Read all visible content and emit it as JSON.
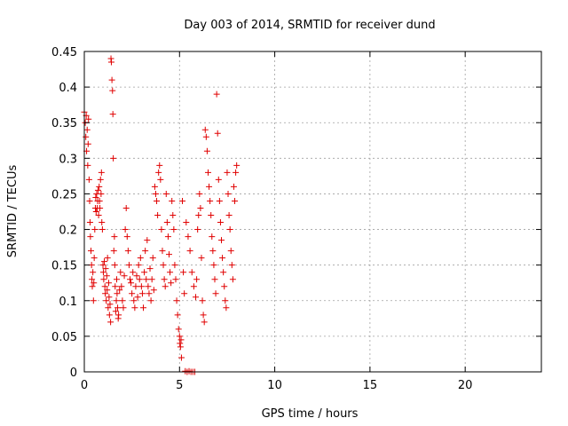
{
  "chart_data": {
    "type": "scatter",
    "title": "Day 003 of 2014, SRMTID for receiver dund",
    "xlabel": "GPS time / hours",
    "ylabel": "SRMTID / TECUs",
    "xlim": [
      0,
      24
    ],
    "ylim": [
      0,
      0.45
    ],
    "x_ticks": [
      0,
      5,
      10,
      15,
      20
    ],
    "y_ticks": [
      0,
      0.05,
      0.1,
      0.15,
      0.2,
      0.25,
      0.3,
      0.35,
      0.4,
      0.45
    ],
    "x_tick_labels": [
      "0",
      "5",
      "10",
      "15",
      "20"
    ],
    "y_tick_labels": [
      "0",
      "0.05",
      "0.1",
      "0.15",
      "0.2",
      "0.25",
      "0.3",
      "0.35",
      "0.4",
      "0.45"
    ],
    "grid": true,
    "marker": "plus",
    "color": "#e00000",
    "points": [
      [
        0.0,
        0.365
      ],
      [
        0.05,
        0.35
      ],
      [
        0.08,
        0.33
      ],
      [
        0.1,
        0.36
      ],
      [
        0.12,
        0.31
      ],
      [
        0.15,
        0.34
      ],
      [
        0.18,
        0.29
      ],
      [
        0.2,
        0.32
      ],
      [
        0.22,
        0.355
      ],
      [
        0.25,
        0.27
      ],
      [
        0.28,
        0.24
      ],
      [
        0.3,
        0.21
      ],
      [
        0.32,
        0.19
      ],
      [
        0.35,
        0.17
      ],
      [
        0.38,
        0.15
      ],
      [
        0.4,
        0.13
      ],
      [
        0.42,
        0.12
      ],
      [
        0.45,
        0.14
      ],
      [
        0.48,
        0.1
      ],
      [
        0.5,
        0.125
      ],
      [
        0.52,
        0.16
      ],
      [
        0.55,
        0.2
      ],
      [
        0.58,
        0.23
      ],
      [
        0.6,
        0.245
      ],
      [
        0.62,
        0.225
      ],
      [
        0.65,
        0.25
      ],
      [
        0.68,
        0.23
      ],
      [
        0.7,
        0.24
      ],
      [
        0.72,
        0.255
      ],
      [
        0.75,
        0.22
      ],
      [
        0.78,
        0.26
      ],
      [
        0.8,
        0.24
      ],
      [
        0.82,
        0.23
      ],
      [
        0.85,
        0.27
      ],
      [
        0.88,
        0.25
      ],
      [
        0.9,
        0.28
      ],
      [
        0.92,
        0.21
      ],
      [
        0.95,
        0.2
      ],
      [
        0.98,
        0.15
      ],
      [
        1.0,
        0.14
      ],
      [
        1.02,
        0.13
      ],
      [
        1.05,
        0.155
      ],
      [
        1.08,
        0.12
      ],
      [
        1.1,
        0.11
      ],
      [
        1.12,
        0.145
      ],
      [
        1.15,
        0.1
      ],
      [
        1.18,
        0.135
      ],
      [
        1.2,
        0.115
      ],
      [
        1.22,
        0.16
      ],
      [
        1.25,
        0.09
      ],
      [
        1.28,
        0.125
      ],
      [
        1.3,
        0.105
      ],
      [
        1.32,
        0.08
      ],
      [
        1.35,
        0.095
      ],
      [
        1.38,
        0.07
      ],
      [
        1.4,
        0.44
      ],
      [
        1.42,
        0.435
      ],
      [
        1.45,
        0.41
      ],
      [
        1.48,
        0.395
      ],
      [
        1.5,
        0.362
      ],
      [
        1.52,
        0.3
      ],
      [
        1.55,
        0.17
      ],
      [
        1.58,
        0.19
      ],
      [
        1.6,
        0.15
      ],
      [
        1.62,
        0.12
      ],
      [
        1.65,
        0.085
      ],
      [
        1.68,
        0.1
      ],
      [
        1.7,
        0.13
      ],
      [
        1.72,
        0.11
      ],
      [
        1.75,
        0.09
      ],
      [
        1.78,
        0.075
      ],
      [
        1.8,
        0.08
      ],
      [
        1.85,
        0.115
      ],
      [
        1.9,
        0.14
      ],
      [
        1.95,
        0.12
      ],
      [
        2.0,
        0.1
      ],
      [
        2.05,
        0.09
      ],
      [
        2.1,
        0.135
      ],
      [
        2.15,
        0.2
      ],
      [
        2.2,
        0.23
      ],
      [
        2.25,
        0.19
      ],
      [
        2.3,
        0.17
      ],
      [
        2.35,
        0.15
      ],
      [
        2.4,
        0.13
      ],
      [
        2.45,
        0.125
      ],
      [
        2.5,
        0.11
      ],
      [
        2.55,
        0.14
      ],
      [
        2.6,
        0.1
      ],
      [
        2.65,
        0.09
      ],
      [
        2.7,
        0.12
      ],
      [
        2.75,
        0.135
      ],
      [
        2.8,
        0.105
      ],
      [
        2.85,
        0.15
      ],
      [
        2.9,
        0.13
      ],
      [
        2.95,
        0.16
      ],
      [
        3.0,
        0.12
      ],
      [
        3.05,
        0.11
      ],
      [
        3.1,
        0.09
      ],
      [
        3.15,
        0.14
      ],
      [
        3.2,
        0.17
      ],
      [
        3.25,
        0.13
      ],
      [
        3.3,
        0.185
      ],
      [
        3.35,
        0.12
      ],
      [
        3.4,
        0.11
      ],
      [
        3.45,
        0.145
      ],
      [
        3.5,
        0.1
      ],
      [
        3.55,
        0.13
      ],
      [
        3.6,
        0.16
      ],
      [
        3.65,
        0.115
      ],
      [
        3.7,
        0.26
      ],
      [
        3.75,
        0.25
      ],
      [
        3.8,
        0.24
      ],
      [
        3.85,
        0.22
      ],
      [
        3.9,
        0.28
      ],
      [
        3.95,
        0.29
      ],
      [
        4.0,
        0.27
      ],
      [
        4.05,
        0.2
      ],
      [
        4.1,
        0.17
      ],
      [
        4.15,
        0.15
      ],
      [
        4.2,
        0.13
      ],
      [
        4.25,
        0.12
      ],
      [
        4.3,
        0.25
      ],
      [
        4.35,
        0.21
      ],
      [
        4.4,
        0.19
      ],
      [
        4.45,
        0.165
      ],
      [
        4.5,
        0.14
      ],
      [
        4.55,
        0.125
      ],
      [
        4.6,
        0.24
      ],
      [
        4.65,
        0.22
      ],
      [
        4.7,
        0.2
      ],
      [
        4.75,
        0.15
      ],
      [
        4.8,
        0.13
      ],
      [
        4.85,
        0.1
      ],
      [
        4.9,
        0.08
      ],
      [
        4.95,
        0.06
      ],
      [
        5.0,
        0.05
      ],
      [
        5.02,
        0.04
      ],
      [
        5.05,
        0.035
      ],
      [
        5.08,
        0.045
      ],
      [
        5.1,
        0.02
      ],
      [
        5.15,
        0.24
      ],
      [
        5.2,
        0.14
      ],
      [
        5.25,
        0.11
      ],
      [
        5.3,
        0.001
      ],
      [
        5.4,
        0.0
      ],
      [
        5.5,
        0.001
      ],
      [
        5.6,
        0.0
      ],
      [
        5.7,
        0.0
      ],
      [
        5.8,
        0.0
      ],
      [
        5.35,
        0.21
      ],
      [
        5.45,
        0.19
      ],
      [
        5.55,
        0.17
      ],
      [
        5.65,
        0.14
      ],
      [
        5.75,
        0.12
      ],
      [
        5.85,
        0.105
      ],
      [
        5.9,
        0.13
      ],
      [
        5.95,
        0.2
      ],
      [
        6.0,
        0.22
      ],
      [
        6.05,
        0.25
      ],
      [
        6.1,
        0.23
      ],
      [
        6.15,
        0.16
      ],
      [
        6.2,
        0.1
      ],
      [
        6.25,
        0.08
      ],
      [
        6.3,
        0.07
      ],
      [
        6.35,
        0.34
      ],
      [
        6.4,
        0.33
      ],
      [
        6.45,
        0.31
      ],
      [
        6.5,
        0.28
      ],
      [
        6.55,
        0.26
      ],
      [
        6.6,
        0.24
      ],
      [
        6.65,
        0.22
      ],
      [
        6.7,
        0.19
      ],
      [
        6.75,
        0.17
      ],
      [
        6.8,
        0.15
      ],
      [
        6.85,
        0.13
      ],
      [
        6.9,
        0.11
      ],
      [
        6.95,
        0.39
      ],
      [
        7.0,
        0.335
      ],
      [
        7.05,
        0.27
      ],
      [
        7.1,
        0.24
      ],
      [
        7.15,
        0.21
      ],
      [
        7.2,
        0.185
      ],
      [
        7.25,
        0.16
      ],
      [
        7.3,
        0.14
      ],
      [
        7.35,
        0.12
      ],
      [
        7.4,
        0.1
      ],
      [
        7.45,
        0.09
      ],
      [
        7.5,
        0.28
      ],
      [
        7.55,
        0.25
      ],
      [
        7.6,
        0.22
      ],
      [
        7.65,
        0.2
      ],
      [
        7.7,
        0.17
      ],
      [
        7.75,
        0.15
      ],
      [
        7.8,
        0.13
      ],
      [
        7.85,
        0.26
      ],
      [
        7.9,
        0.24
      ],
      [
        7.95,
        0.28
      ],
      [
        8.0,
        0.29
      ]
    ]
  }
}
